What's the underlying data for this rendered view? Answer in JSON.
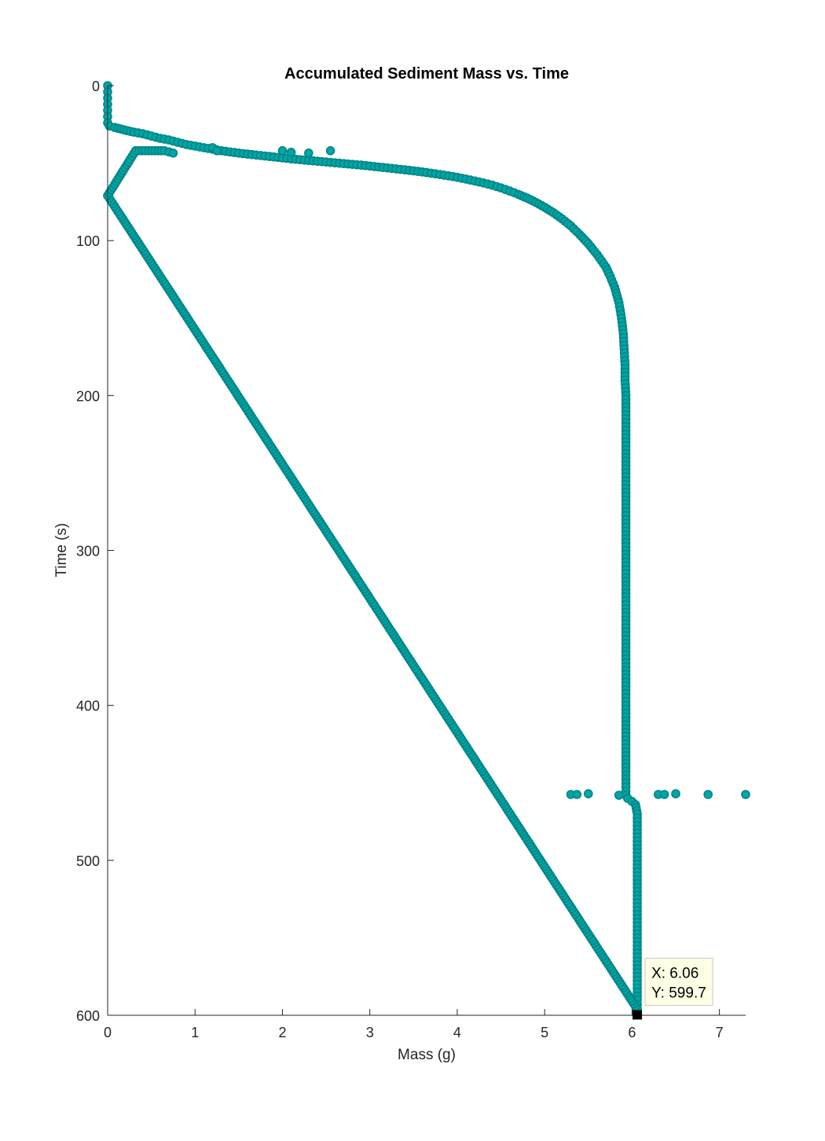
{
  "chart_data": {
    "type": "scatter",
    "title": "Accumulated Sediment Mass vs. Time",
    "xlabel": "Mass (g)",
    "ylabel": "Time (s)",
    "xlim": [
      0,
      7.3
    ],
    "ylim": [
      0,
      600
    ],
    "y_reversed": true,
    "x_ticks": [
      "0",
      "1",
      "2",
      "3",
      "4",
      "5",
      "6",
      "7"
    ],
    "y_ticks": [
      "0",
      "100",
      "200",
      "300",
      "400",
      "500",
      "600"
    ],
    "marker_color": "#00A6A6",
    "marker_edge_color": "#008585",
    "grid": false,
    "box": false,
    "series": [
      {
        "points": [
          [
            0.0,
            0
          ],
          [
            0.0,
            4
          ],
          [
            0.0,
            8
          ],
          [
            0.0,
            12
          ],
          [
            0.0,
            16
          ],
          [
            0.0,
            20
          ],
          [
            0.0,
            24
          ],
          [
            0.02,
            26
          ],
          [
            0.08,
            27
          ],
          [
            0.15,
            28
          ],
          [
            0.22,
            29
          ],
          [
            0.3,
            30
          ],
          [
            0.4,
            31
          ],
          [
            0.5,
            32.5
          ],
          [
            0.6,
            34
          ],
          [
            0.7,
            35
          ],
          [
            0.8,
            36.5
          ],
          [
            0.9,
            38
          ],
          [
            1.0,
            39
          ],
          [
            1.1,
            40
          ],
          [
            1.2,
            41
          ],
          [
            1.3,
            42
          ],
          [
            1.4,
            42.8
          ],
          [
            1.5,
            43.5
          ],
          [
            1.6,
            44.2
          ],
          [
            1.7,
            44.8
          ],
          [
            1.8,
            45.4
          ],
          [
            1.9,
            46
          ],
          [
            2.0,
            46.6
          ],
          [
            2.1,
            47.2
          ],
          [
            2.2,
            47.8
          ],
          [
            2.3,
            48.3
          ],
          [
            2.4,
            48.8
          ],
          [
            2.5,
            49.3
          ],
          [
            2.6,
            49.8
          ],
          [
            2.7,
            50.3
          ],
          [
            2.8,
            50.8
          ],
          [
            2.9,
            51.3
          ],
          [
            3.0,
            51.9
          ],
          [
            3.1,
            52.5
          ],
          [
            3.2,
            53.1
          ],
          [
            3.3,
            53.7
          ],
          [
            3.4,
            54.3
          ],
          [
            3.5,
            55
          ],
          [
            3.6,
            55.7
          ],
          [
            3.7,
            56.5
          ],
          [
            3.8,
            57.3
          ],
          [
            3.9,
            58.2
          ],
          [
            4.0,
            59.2
          ],
          [
            4.1,
            60.3
          ],
          [
            4.2,
            61.5
          ],
          [
            4.3,
            62.8
          ],
          [
            4.4,
            64.2
          ],
          [
            4.5,
            66
          ],
          [
            4.6,
            68
          ],
          [
            4.7,
            70.2
          ],
          [
            4.8,
            72.6
          ],
          [
            4.9,
            75.3
          ],
          [
            5.0,
            78.5
          ],
          [
            5.1,
            82
          ],
          [
            5.2,
            86
          ],
          [
            5.3,
            90.5
          ],
          [
            5.4,
            96
          ],
          [
            5.5,
            102
          ],
          [
            5.6,
            109
          ],
          [
            5.7,
            117
          ],
          [
            5.75,
            123
          ],
          [
            5.8,
            130
          ],
          [
            5.85,
            140
          ],
          [
            5.88,
            150
          ],
          [
            5.9,
            160
          ],
          [
            5.91,
            170
          ],
          [
            5.92,
            180
          ],
          [
            5.92,
            190
          ],
          [
            5.93,
            200
          ],
          [
            5.93,
            210
          ],
          [
            5.93,
            220
          ],
          [
            5.93,
            230
          ],
          [
            5.93,
            240
          ],
          [
            5.93,
            250
          ],
          [
            5.93,
            260
          ],
          [
            5.93,
            270
          ],
          [
            5.93,
            280
          ],
          [
            5.93,
            290
          ],
          [
            5.93,
            300
          ],
          [
            5.93,
            310
          ],
          [
            5.93,
            320
          ],
          [
            5.93,
            330
          ],
          [
            5.93,
            340
          ],
          [
            5.93,
            350
          ],
          [
            5.93,
            360
          ],
          [
            5.93,
            370
          ],
          [
            5.93,
            380
          ],
          [
            5.93,
            390
          ],
          [
            5.93,
            400
          ],
          [
            5.93,
            410
          ],
          [
            5.93,
            420
          ],
          [
            5.93,
            430
          ],
          [
            5.93,
            440
          ],
          [
            5.93,
            450
          ],
          [
            5.93,
            458
          ],
          [
            5.95,
            460
          ],
          [
            6.0,
            462
          ],
          [
            6.04,
            464
          ],
          [
            6.06,
            470
          ],
          [
            6.06,
            480
          ],
          [
            6.06,
            490
          ],
          [
            6.06,
            500
          ],
          [
            6.06,
            510
          ],
          [
            6.06,
            520
          ],
          [
            6.06,
            530
          ],
          [
            6.06,
            540
          ],
          [
            6.06,
            550
          ],
          [
            6.06,
            560
          ],
          [
            6.06,
            570
          ],
          [
            6.06,
            580
          ],
          [
            6.06,
            590
          ],
          [
            6.06,
            596
          ],
          [
            0.0,
            71
          ],
          [
            0.32,
            42
          ],
          [
            0.65,
            42
          ],
          [
            0.75,
            43.5
          ],
          [
            1.2,
            40
          ],
          [
            1.25,
            42
          ],
          [
            2.0,
            42
          ],
          [
            2.1,
            43
          ],
          [
            2.3,
            43.5
          ],
          [
            2.55,
            42
          ],
          [
            5.3,
            457.5
          ],
          [
            5.37,
            457.5
          ],
          [
            5.5,
            457
          ],
          [
            5.85,
            458
          ],
          [
            6.3,
            457.5
          ],
          [
            6.37,
            457.5
          ],
          [
            6.5,
            457
          ],
          [
            6.87,
            457.5
          ],
          [
            7.3,
            457.5
          ]
        ]
      }
    ],
    "datatip": {
      "x_text": "X: 6.06",
      "y_text": "Y: 599.7",
      "x": 6.06,
      "y": 599.7
    }
  }
}
